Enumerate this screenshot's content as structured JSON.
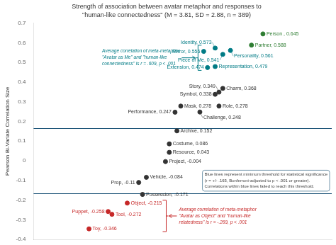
{
  "chart_data": {
    "type": "scatter",
    "title": "Strength of association between avatar metaphor and responses to",
    "subtitle": "\"human-like connectedness\" (M = 3.81, SD = 2.88, n = 389)",
    "ylabel": "Pearson Bi-Variate Correlation Size",
    "xlim": [
      0,
      7.8
    ],
    "ylim": [
      -0.4,
      0.7
    ],
    "yticks": [
      -0.4,
      -0.3,
      -0.2,
      -0.1,
      0,
      0.1,
      0.2,
      0.3,
      0.4,
      0.5,
      0.6,
      0.7
    ],
    "tick_labels": "y",
    "grid": false,
    "data_labels": true,
    "reference_lines": {
      "values": [
        -0.165,
        0.165
      ],
      "color": "#1a5276"
    },
    "annotation": "Blue lines represent minimum threshold for statistical significance\n(r = +/- .165, Bonferroni-adjusted to p < .001 or greater).\nCorrelations within blue lines failed to reach this threshold.",
    "series": [
      {
        "color": "#2e7d32",
        "x": [
          6.0,
          5.7
        ],
        "values": [
          0.645,
          0.588
        ],
        "value_labels": [
          "Person , 0.645",
          "Partner, 0.588"
        ]
      },
      {
        "color": "#007b85",
        "x": [
          4.75,
          4.45,
          5.15,
          4.95,
          4.75,
          4.55
        ],
        "values": [
          0.573,
          0.556,
          0.561,
          0.541,
          0.479,
          0.474
        ],
        "value_labels": [
          "Identity, 0.573",
          "Mirror, 0.556",
          "Personality, 0.561",
          "Piece of Me, 0.541",
          "Representation, 0.479",
          "Extension, 0.474"
        ],
        "annotation": "Average correlation of meta-metaphor\n\"Avatar as Me\" and \"human-like\nconnectedness\" is r = .609, p < .001"
      },
      {
        "color": "#333333",
        "x": [
          4.95,
          4.85,
          3.85,
          4.75,
          4.85,
          4.35,
          3.7,
          3.75,
          3.55,
          3.55,
          3.45,
          2.95,
          2.75,
          2.85
        ],
        "values": [
          0.368,
          0.349,
          0.278,
          0.338,
          0.278,
          0.248,
          0.247,
          0.152,
          0.086,
          0.043,
          -0.004,
          -0.084,
          -0.11,
          -0.171
        ],
        "value_labels": [
          "Charm, 0.368",
          "Story, 0.349",
          "Mask, 0.278",
          "Symbol, 0.338",
          "Role, 0.278",
          "Challenge, 0.248",
          "Performance, 0.247",
          "Archive, 0.152",
          "Costume, 0.086",
          "Resource, 0.043",
          "Project, -0.004",
          "Vehicle, -0.084",
          "Prop, -0.11",
          "Possession, -0.171"
        ]
      },
      {
        "color": "#c62828",
        "x": [
          2.45,
          1.95,
          2.05,
          1.45
        ],
        "values": [
          -0.215,
          -0.258,
          -0.272,
          -0.346
        ],
        "value_labels": [
          "Object, -0.215",
          "Puppet, -0.258",
          "Tool, -0.272",
          "Toy, -0.346"
        ],
        "annotation": "Average correlation of meta-metaphor\n\"Avatar as Object\" and \"human-like\nrelatedness\" is r = -.269, p < .001"
      }
    ]
  }
}
